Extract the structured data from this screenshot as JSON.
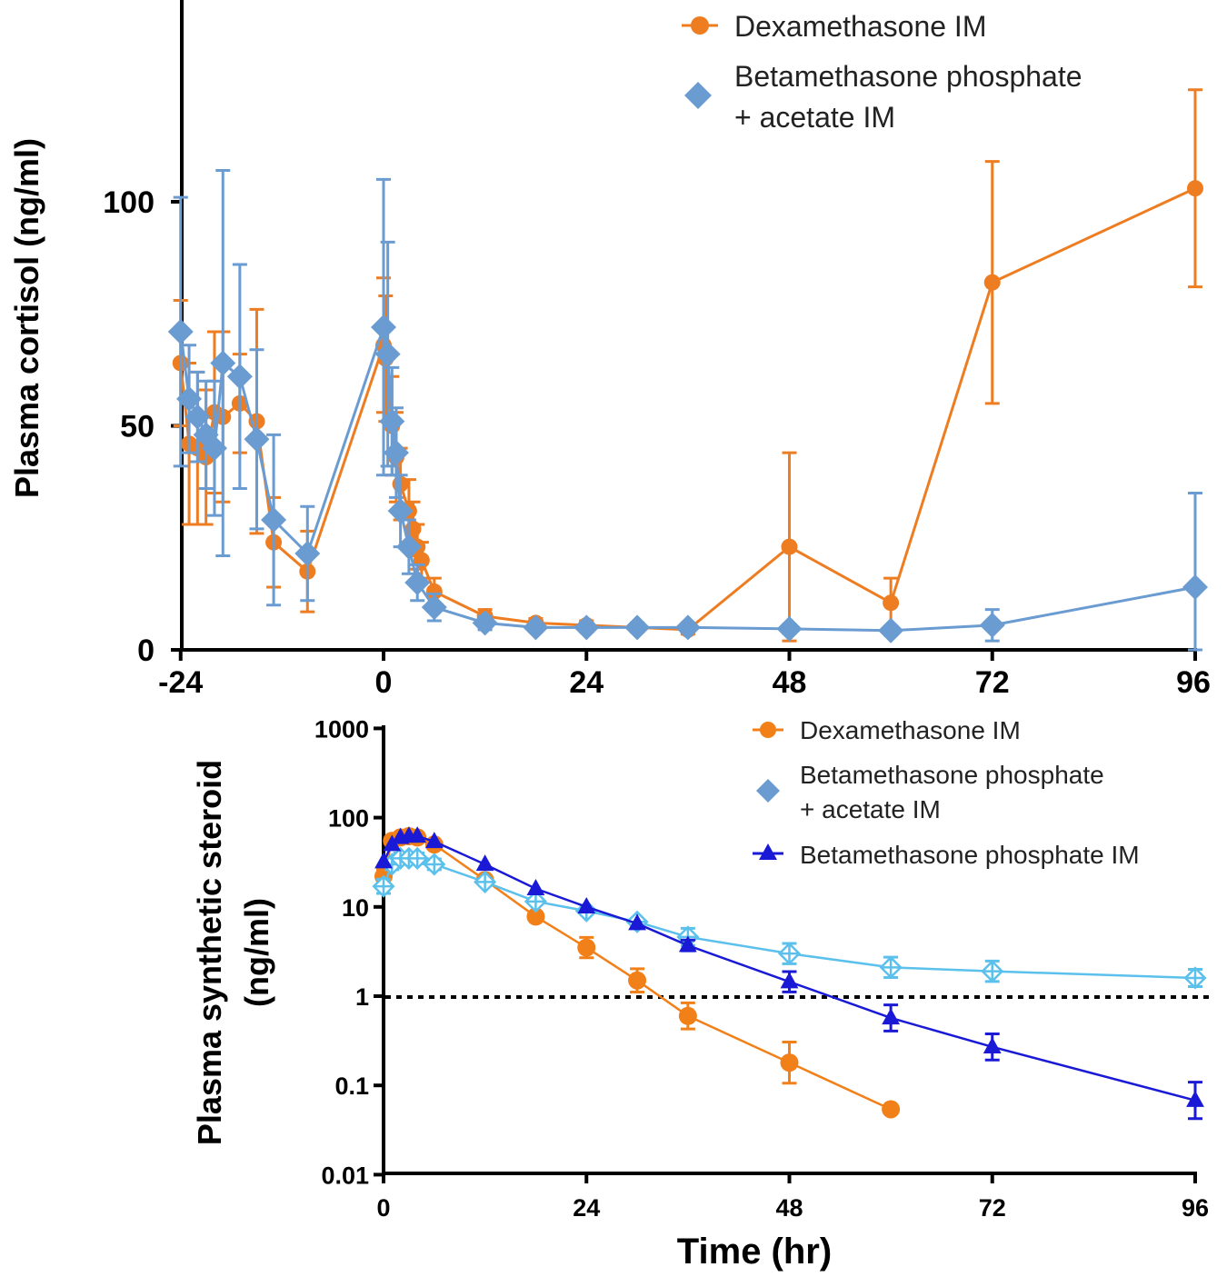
{
  "chart_data": [
    {
      "type": "line",
      "title": "",
      "xlabel": "",
      "ylabel": "Plasma cortisol (ng/ml)",
      "xlim": [
        -24,
        96
      ],
      "ylim": [
        0,
        140
      ],
      "xticks": [
        "-24",
        "0",
        "24",
        "48",
        "72",
        "96"
      ],
      "yticks": [
        "0",
        "50",
        "100"
      ],
      "legend_position": "top-right",
      "series": [
        {
          "name": "Dexamethasone IM",
          "color": "#ee7d22",
          "marker": "circle",
          "x": [
            -24,
            -23,
            -22,
            -21,
            -20,
            -19,
            -17,
            -15,
            -13,
            -9,
            0,
            0.25,
            1,
            1.5,
            2,
            3,
            3.5,
            4,
            4.5,
            6,
            12,
            18,
            24,
            30,
            36,
            48,
            60,
            72,
            96
          ],
          "y": [
            64,
            46,
            45,
            43,
            53,
            52,
            55,
            51,
            24,
            17.5,
            68,
            65,
            50,
            43,
            37,
            31,
            27,
            23,
            20,
            13,
            7.5,
            6,
            5.5,
            5,
            4.5,
            23,
            10.5,
            82,
            103
          ],
          "err": [
            14,
            18,
            17,
            15,
            18,
            19,
            11,
            25,
            10,
            9,
            15,
            14,
            11,
            10,
            8,
            7,
            6,
            5,
            4,
            3,
            1.5,
            1,
            1,
            1,
            1,
            21,
            5.5,
            27,
            22
          ]
        },
        {
          "name": "Betamethasone phosphate + acetate IM",
          "color": "#6a9bd1",
          "marker": "diamond",
          "x": [
            -24,
            -23,
            -22,
            -21,
            -20,
            -19,
            -17,
            -15,
            -13,
            -9,
            0,
            0.5,
            1,
            1.5,
            2,
            3,
            4,
            6,
            12,
            18,
            24,
            30,
            36,
            48,
            60,
            72,
            96
          ],
          "y": [
            71,
            56,
            52,
            48,
            45,
            64,
            61,
            47,
            29,
            21.5,
            72,
            66,
            51,
            44,
            31,
            23,
            15,
            9.5,
            6,
            5,
            5,
            5,
            5,
            4.7,
            4.3,
            5.5,
            14
          ],
          "err": [
            30,
            12,
            10,
            12,
            15,
            43,
            25,
            20,
            19,
            10.5,
            33,
            25,
            12,
            10,
            8,
            6,
            4,
            3,
            1.5,
            1,
            1,
            1,
            1,
            1,
            1,
            3.5,
            21
          ]
        }
      ]
    },
    {
      "type": "line",
      "title": "",
      "xlabel": "Time (hr)",
      "ylabel": "Plasma synthetic steroid (ng/ml)",
      "yscale": "log",
      "xlim": [
        0,
        96
      ],
      "ylim": [
        0.01,
        1000
      ],
      "xticks": [
        "0",
        "24",
        "48",
        "72",
        "96"
      ],
      "yticks": [
        "0.01",
        "0.1",
        "1",
        "10",
        "100",
        "1000"
      ],
      "reference_line": 1,
      "legend_position": "top-right",
      "series": [
        {
          "name": "Dexamethasone IM",
          "color": "#f28019",
          "marker": "circle",
          "x": [
            0,
            1,
            2,
            3,
            4,
            6,
            12,
            18,
            24,
            30,
            36,
            48,
            60
          ],
          "y": [
            22,
            55,
            60,
            62,
            60,
            50,
            20,
            7.8,
            3.5,
            1.5,
            0.6,
            0.18,
            0.054
          ],
          "err_factor": [
            1.2,
            1.1,
            1.1,
            1.1,
            1.1,
            1.1,
            1.1,
            1.1,
            1.3,
            1.35,
            1.4,
            1.7,
            1.05
          ]
        },
        {
          "name": "Betamethasone phosphate + acetate IM",
          "color": "#5bc0eb",
          "marker": "open-diamond",
          "x": [
            0,
            1,
            2,
            3,
            4,
            6,
            12,
            18,
            24,
            30,
            36,
            48,
            60,
            72,
            96
          ],
          "y": [
            17,
            30,
            35,
            35,
            35,
            30,
            19,
            11.5,
            9,
            6.8,
            4.6,
            3.0,
            2.1,
            1.9,
            1.6
          ],
          "err_factor": [
            1.2,
            1.15,
            1.15,
            1.15,
            1.15,
            1.15,
            1.1,
            1.1,
            1.1,
            1.1,
            1.25,
            1.3,
            1.3,
            1.3,
            1.25
          ]
        },
        {
          "name": "Betamethasone phosphate IM",
          "color": "#1a1ad6",
          "marker": "triangle",
          "x": [
            0,
            1,
            2,
            3,
            4,
            6,
            12,
            18,
            24,
            30,
            36,
            48,
            60,
            72,
            96
          ],
          "y": [
            32,
            50,
            60,
            62,
            62,
            54,
            30,
            16,
            10,
            6.5,
            3.7,
            1.45,
            0.57,
            0.27,
            0.068
          ],
          "err_factor": [
            1.1,
            1.1,
            1.1,
            1.1,
            1.1,
            1.1,
            1.1,
            1.1,
            1.1,
            1.1,
            1.15,
            1.3,
            1.4,
            1.4,
            1.6
          ]
        }
      ]
    }
  ],
  "legend_top": {
    "items": [
      "Dexamethasone IM",
      "Betamethasone phosphate",
      "+ acetate IM"
    ]
  },
  "legend_bottom": {
    "items": [
      "Dexamethasone IM",
      "Betamethasone phosphate",
      "+ acetate IM",
      "Betamethasone phosphate IM"
    ]
  },
  "bottom_ylabel_lines": [
    "Plasma synthetic steroid",
    "(ng/ml)"
  ]
}
